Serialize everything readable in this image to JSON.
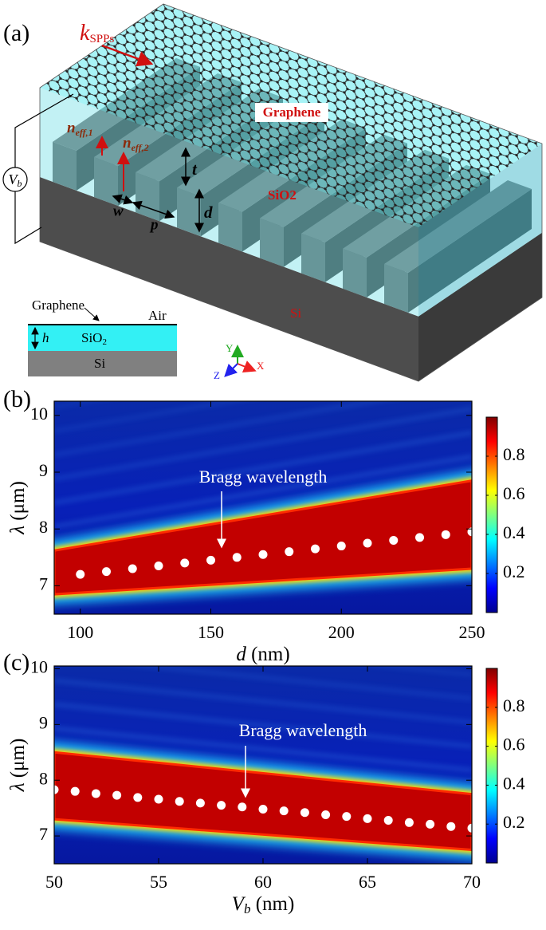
{
  "panel_labels": [
    "(a)",
    "(b)",
    "(c)"
  ],
  "diagram": {
    "wave_vector": {
      "symbol": "k",
      "sub": "SPPs"
    },
    "graphene": "Graphene",
    "n_eff_1": {
      "symbol": "n",
      "sub": "eff,1"
    },
    "n_eff_2": {
      "symbol": "n",
      "sub": "eff,2"
    },
    "voltage": {
      "symbol": "V",
      "sub": "b"
    },
    "t": "t",
    "d": "d",
    "w": "w",
    "p": "p",
    "oxide": "SiO2",
    "substrate": "Si",
    "inset": {
      "graphene": "Graphene",
      "air": "Air",
      "h": "h",
      "oxide": {
        "main": "SiO",
        "sub": "2"
      },
      "substrate": "Si"
    },
    "axes": {
      "x": "X",
      "y": "Y",
      "z": "Z"
    }
  },
  "chart_data": [
    {
      "type": "scatter",
      "x_label": {
        "symbol": "d",
        "unit": "(nm)"
      },
      "y_label": {
        "symbol": "λ",
        "unit": "(μm)"
      },
      "annotation": "Bragg wavelength",
      "x": [
        100,
        110,
        120,
        130,
        140,
        150,
        160,
        170,
        180,
        190,
        200,
        210,
        220,
        230,
        240,
        250
      ],
      "values": [
        7.2,
        7.25,
        7.3,
        7.35,
        7.4,
        7.45,
        7.5,
        7.55,
        7.6,
        7.65,
        7.7,
        7.75,
        7.8,
        7.85,
        7.9,
        7.95
      ],
      "color": "#ffffff",
      "xlim": [
        90,
        250
      ],
      "xticks": [
        100,
        150,
        200,
        250
      ],
      "ylim": [
        6.5,
        10.25
      ],
      "yticks": [
        7,
        8,
        9,
        10
      ],
      "band": {
        "x": [
          90,
          250
        ],
        "lower": [
          6.85,
          7.3
        ],
        "upper": [
          7.62,
          8.85
        ]
      },
      "colorbar": {
        "lim": [
          0,
          1
        ],
        "ticks": [
          0.2,
          0.4,
          0.6,
          0.8
        ]
      }
    },
    {
      "type": "scatter",
      "x_label": {
        "symbol": "V",
        "sub": "b",
        "unit": "(nm)"
      },
      "y_label": {
        "symbol": "λ",
        "unit": "(μm)"
      },
      "annotation": "Bragg wavelength",
      "x": [
        50,
        51,
        52,
        53,
        54,
        55,
        56,
        57,
        58,
        59,
        60,
        61,
        62,
        63,
        64,
        65,
        66,
        67,
        68,
        69,
        70
      ],
      "values": [
        7.83,
        7.8,
        7.76,
        7.73,
        7.69,
        7.66,
        7.62,
        7.59,
        7.55,
        7.52,
        7.48,
        7.45,
        7.42,
        7.38,
        7.35,
        7.31,
        7.28,
        7.24,
        7.21,
        7.17,
        7.14
      ],
      "color": "#ffffff",
      "xlim": [
        50,
        70
      ],
      "xticks": [
        50,
        55,
        60,
        65,
        70
      ],
      "ylim": [
        6.5,
        10.05
      ],
      "yticks": [
        7,
        8,
        9,
        10
      ],
      "band": {
        "x": [
          50,
          70
        ],
        "lower": [
          7.3,
          6.75
        ],
        "upper": [
          8.5,
          7.75
        ]
      },
      "colorbar": {
        "lim": [
          0,
          1
        ],
        "ticks": [
          0.2,
          0.4,
          0.6,
          0.8
        ]
      }
    }
  ]
}
